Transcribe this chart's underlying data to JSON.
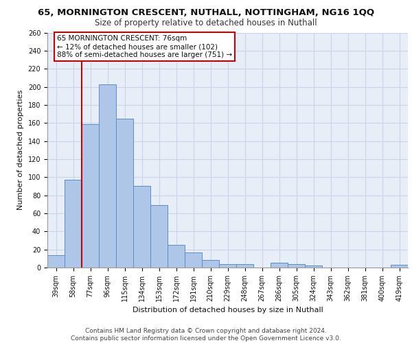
{
  "title_line1": "65, MORNINGTON CRESCENT, NUTHALL, NOTTINGHAM, NG16 1QQ",
  "title_line2": "Size of property relative to detached houses in Nuthall",
  "xlabel": "Distribution of detached houses by size in Nuthall",
  "ylabel": "Number of detached properties",
  "categories": [
    "39sqm",
    "58sqm",
    "77sqm",
    "96sqm",
    "115sqm",
    "134sqm",
    "153sqm",
    "172sqm",
    "191sqm",
    "210sqm",
    "229sqm",
    "248sqm",
    "267sqm",
    "286sqm",
    "305sqm",
    "324sqm",
    "343sqm",
    "362sqm",
    "381sqm",
    "400sqm",
    "419sqm"
  ],
  "values": [
    14,
    97,
    159,
    203,
    165,
    90,
    69,
    25,
    17,
    8,
    4,
    4,
    0,
    5,
    4,
    2,
    0,
    0,
    0,
    0,
    3
  ],
  "bar_color": "#aec6e8",
  "bar_edge_color": "#5b8cc8",
  "grid_color": "#c8d4e8",
  "background_color": "#e8eef8",
  "annotation_box_text": "65 MORNINGTON CRESCENT: 76sqm\n← 12% of detached houses are smaller (102)\n88% of semi-detached houses are larger (751) →",
  "annotation_box_color": "#ffffff",
  "annotation_box_edge_color": "#cc0000",
  "red_line_x": 1.5,
  "ylim": [
    0,
    260
  ],
  "yticks": [
    0,
    20,
    40,
    60,
    80,
    100,
    120,
    140,
    160,
    180,
    200,
    220,
    240,
    260
  ],
  "footer_line1": "Contains HM Land Registry data © Crown copyright and database right 2024.",
  "footer_line2": "Contains public sector information licensed under the Open Government Licence v3.0.",
  "title_fontsize": 9.5,
  "subtitle_fontsize": 8.5,
  "footer_fontsize": 6.5,
  "axis_label_fontsize": 8,
  "tick_fontsize": 7,
  "annotation_fontsize": 7.5
}
